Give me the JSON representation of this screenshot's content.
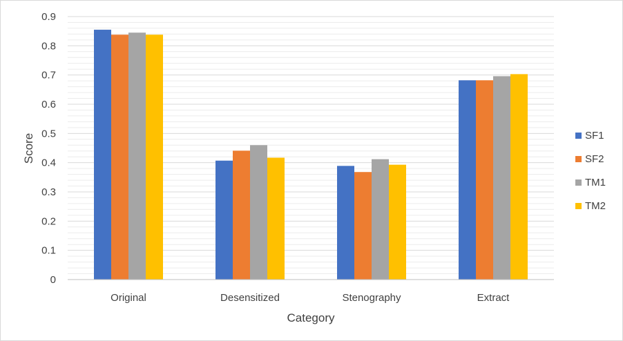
{
  "chart_data": {
    "type": "bar",
    "categories": [
      "Original",
      "Desensitized",
      "Stenography",
      "Extract"
    ],
    "series": [
      {
        "name": "SF1",
        "values": [
          0.855,
          0.407,
          0.389,
          0.682
        ],
        "color": "#4472c4"
      },
      {
        "name": "SF2",
        "values": [
          0.838,
          0.441,
          0.368,
          0.682
        ],
        "color": "#ed7d31"
      },
      {
        "name": "TM1",
        "values": [
          0.845,
          0.46,
          0.412,
          0.696
        ],
        "color": "#a5a5a5"
      },
      {
        "name": "TM2",
        "values": [
          0.838,
          0.417,
          0.393,
          0.703
        ],
        "color": "#ffc000"
      }
    ],
    "y_ticks": [
      "0",
      "0.1",
      "0.2",
      "0.3",
      "0.4",
      "0.5",
      "0.6",
      "0.7",
      "0.8",
      "0.9"
    ],
    "xlabel": "Category",
    "ylabel": "Score",
    "ylim": [
      0,
      0.9
    ],
    "grid": true,
    "minor_grid_step": 0.02,
    "legend_position": "right"
  }
}
